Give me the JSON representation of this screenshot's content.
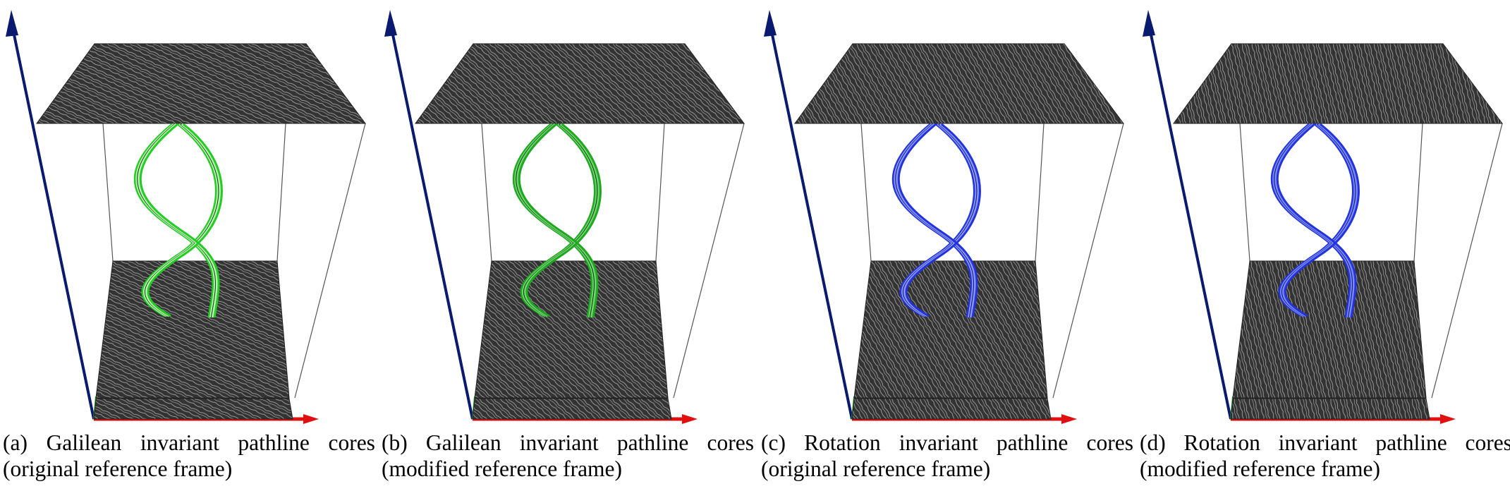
{
  "figure": {
    "panels": [
      {
        "tag": "(a)",
        "caption_words": [
          "Galilean",
          "invariant",
          "pathline",
          "cores"
        ],
        "caption_line2": "(original reference frame)",
        "curve_color": "#22cc22",
        "curve_highlight": "#b8f5b0",
        "curve_dark": "#114411"
      },
      {
        "tag": "(b)",
        "caption_words": [
          "Galilean",
          "invariant",
          "pathline",
          "cores"
        ],
        "caption_line2": "(modified reference frame)",
        "curve_color": "#1fa81f",
        "curve_highlight": "#6fd66f",
        "curve_dark": "#0d3d0d"
      },
      {
        "tag": "(c)",
        "caption_words": [
          "Rotation",
          "invariant",
          "pathline",
          "cores"
        ],
        "caption_line2": "(original reference frame)",
        "curve_color": "#2233dd",
        "curve_highlight": "#8a96ff",
        "curve_dark": "#101a70"
      },
      {
        "tag": "(d)",
        "caption_words": [
          "Rotation",
          "invariant",
          "pathline",
          "cores"
        ],
        "caption_line2": "(modified reference frame)",
        "curve_color": "#2233dd",
        "curve_highlight": "#7a88ff",
        "curve_dark": "#101a70"
      }
    ],
    "colors": {
      "axis_vertical": "#0a1a6e",
      "axis_horizontal": "#e01010",
      "axis_small": "#22bb22",
      "lic_slice": "#333333"
    }
  }
}
